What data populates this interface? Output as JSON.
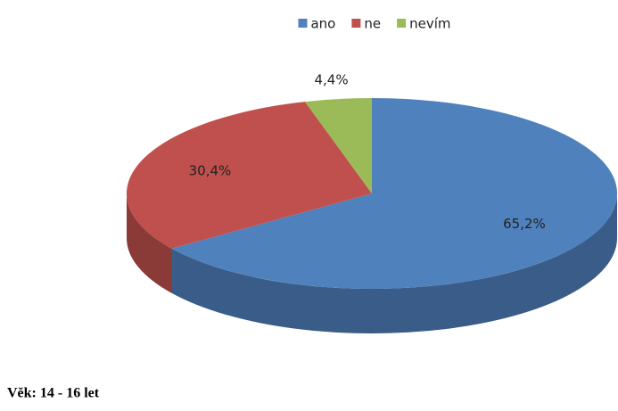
{
  "chart_data": {
    "type": "pie",
    "categories": [
      "ano",
      "ne",
      "nevím"
    ],
    "values": [
      65.2,
      30.4,
      4.4
    ],
    "value_labels": [
      "65,2%",
      "30,4%",
      "4,4%"
    ],
    "colors": [
      "#4f81bd",
      "#c0504d",
      "#9bbb59"
    ],
    "legend": "top",
    "caption": "Věk: 14 - 16 let"
  }
}
